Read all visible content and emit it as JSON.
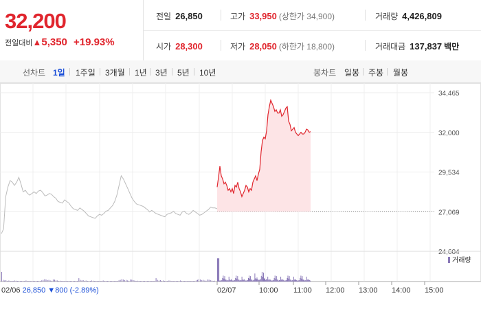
{
  "summary": {
    "price": "32,200",
    "diff_label": "전일대비",
    "diff_triangle": "▲",
    "diff_value": "5,350",
    "diff_rate": "+19.93%"
  },
  "stats": {
    "prev_close": {
      "label": "전일",
      "value": "26,850"
    },
    "high": {
      "label": "고가",
      "value": "33,950",
      "sub": "(상한가 34,900)"
    },
    "volume": {
      "label": "거래량",
      "value": "4,426,809"
    },
    "open": {
      "label": "시가",
      "value": "28,300"
    },
    "low": {
      "label": "저가",
      "value": "28,050",
      "sub": "(하한가 18,800)"
    },
    "amount": {
      "label": "거래대금",
      "value": "137,837",
      "unit": "백만"
    }
  },
  "toolbar": {
    "line_label": "선차트",
    "line_periods": [
      "1일",
      "1주일",
      "3개월",
      "1년",
      "3년",
      "5년",
      "10년"
    ],
    "active_period": "1일",
    "candle_label": "봉차트",
    "candle_periods": [
      "일봉",
      "주봉",
      "월봉"
    ]
  },
  "colors": {
    "up": "#e0252d",
    "down": "#1b4fd8",
    "prev_day_line": "#bbbbbb",
    "volume_bar": "#8a79b8",
    "fill": "#fde4e6"
  },
  "chart_data": {
    "type": "line",
    "y_ticks": [
      "34,465",
      "32,000",
      "29,534",
      "27,069",
      "24,604"
    ],
    "ylim": [
      24604,
      34465
    ],
    "prev_close_ref": 27069,
    "x_ticks": [
      "02/07",
      "10:00",
      "11:00",
      "12:00",
      "13:00",
      "14:00",
      "15:00"
    ],
    "prev_day_label": "02/06",
    "prev_day_close_text": "26,850",
    "prev_day_change_icon": "▼",
    "prev_day_change": "800",
    "prev_day_rate": "(-2.89%)",
    "volume_legend": "거래량",
    "series": [
      {
        "values": [
          25700,
          26000,
          28000,
          28600,
          29000,
          28900,
          28700,
          28900,
          29200,
          28800,
          28300,
          28400,
          28200,
          28100,
          28200,
          28300,
          28200,
          28350,
          28400,
          28250,
          28050,
          28100,
          28200,
          28150,
          28000,
          27900,
          27700,
          27650,
          27600,
          27800,
          27700,
          27600,
          27400,
          27250,
          27200,
          27150,
          27300,
          27200,
          27100,
          26950,
          26800,
          26750,
          26700,
          26650,
          26800,
          26900,
          26850,
          26950,
          27100,
          27150,
          27300,
          27450,
          27700,
          28100,
          28700,
          29300,
          29100,
          28800,
          28500,
          28200,
          27900,
          27700,
          27550,
          27500,
          27450,
          27400,
          27300,
          27200,
          27050,
          27150,
          27050,
          26950,
          26900,
          26850,
          26800,
          26750,
          26900,
          26950,
          27000,
          27100,
          26950,
          26900,
          26850,
          27050,
          27100,
          26950,
          26900,
          27000,
          27150,
          27050,
          26950,
          26850,
          26900,
          27000,
          27100,
          27200,
          27350,
          27300,
          27300,
          27250
        ]
      },
      {
        "values": [
          28600,
          29200,
          29900,
          29300,
          29100,
          28800,
          28900,
          28700,
          28400,
          28500,
          28300,
          28500,
          28200,
          28700,
          28600,
          28900,
          28500,
          28300,
          28000,
          28200,
          28400,
          28700,
          28600,
          28300,
          28500,
          28400,
          28900,
          29100,
          29300,
          29000,
          29400,
          29700,
          30800,
          31500,
          31700,
          31600,
          32100,
          33100,
          33600,
          34000,
          33800,
          33600,
          33300,
          33400,
          33200,
          33200,
          33400,
          33000,
          33100,
          33300,
          33500,
          33600,
          32700,
          32500,
          32100,
          32200,
          32300,
          32000,
          31900,
          31800,
          31900,
          32000,
          31900,
          31900,
          32000,
          32200,
          32150,
          32000,
          32050
        ]
      }
    ],
    "volume_pattern": [
      1,
      0.5,
      0.3,
      0.4,
      0.2,
      0.3,
      0.2,
      0.15,
      0.2,
      0.3,
      0.25,
      0.2,
      0.1,
      0.15,
      0.2,
      0.12,
      0.1,
      0.3,
      0.15,
      0.1,
      0.2,
      0.1,
      0.12,
      0.08,
      0.1,
      0.15,
      0.1,
      0.2,
      0.35,
      0.5,
      0.7,
      0.6,
      0.4,
      0.5,
      0.3,
      0.25,
      0.6,
      0.55,
      0.4,
      0.3,
      0.2,
      0.25,
      0.2,
      0.18,
      0.15,
      0.2,
      0.1,
      0.12,
      0.1,
      0.15,
      0.1,
      0.08,
      0.12,
      0.1
    ]
  }
}
